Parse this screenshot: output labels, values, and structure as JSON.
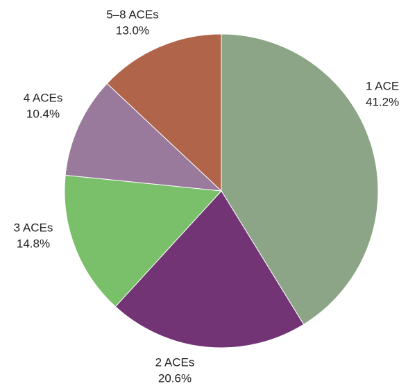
{
  "chart_data": {
    "type": "pie",
    "categories": [
      "1 ACE",
      "2 ACEs",
      "3 ACEs",
      "4 ACEs",
      "5–8 ACEs"
    ],
    "values": [
      41.2,
      20.6,
      14.8,
      10.4,
      13.0
    ],
    "value_labels": [
      "41.2%",
      "20.6%",
      "14.8%",
      "10.4%",
      "13.0%"
    ],
    "colors": [
      "#8ba586",
      "#723475",
      "#7abf69",
      "#9a7a9c",
      "#b0644a"
    ]
  }
}
